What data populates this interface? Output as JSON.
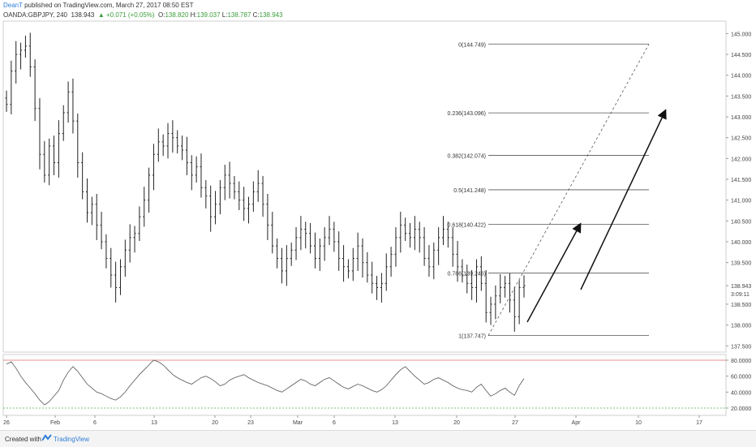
{
  "header": {
    "author": "DeanT",
    "published": " published on TradingView.com, March 27, 2017 08:50 EST",
    "symbol": "OANDA:GBPJPY, 240",
    "last": "138.943",
    "change": "▲ +0.071 (+0.05%)",
    "o_label": "O:",
    "o_value": "138.820",
    "h_label": "H:",
    "h_value": "139.037",
    "l_label": "L:",
    "l_value": "138.787",
    "c_label": "C:",
    "c_value": "138.943"
  },
  "footer": {
    "created_with": "Created with",
    "brand": "TradingView"
  },
  "colors": {
    "candle": "#222222",
    "rsi_line": "#555555",
    "rsi_upper": "#e06666",
    "rsi_lower": "#4caf50",
    "axis_text": "#444444"
  },
  "chart_data": {
    "type": "line",
    "title": "",
    "price_axis": {
      "ticks": [
        "145.000",
        "144.500",
        "144.000",
        "143.500",
        "143.000",
        "142.500",
        "142.000",
        "141.500",
        "141.000",
        "140.500",
        "140.000",
        "139.500",
        "138.943",
        "138.500",
        "138.000",
        "137.500"
      ],
      "tick_values": [
        145.0,
        144.5,
        144.0,
        143.5,
        143.0,
        142.5,
        142.0,
        141.5,
        141.0,
        140.5,
        140.0,
        139.5,
        138.943,
        138.5,
        138.0,
        137.5
      ],
      "countdown": "3:09:11",
      "range": [
        137.35,
        145.3
      ]
    },
    "time_axis": {
      "labels": [
        "26",
        "Feb",
        "6",
        "13",
        "20",
        "23",
        "Mar",
        "6",
        "13",
        "20",
        "27",
        "Apr",
        "10",
        "17"
      ]
    },
    "price_series": {
      "name": "",
      "values": [
        143.3,
        144.1,
        144.5,
        144.6,
        144.7,
        144.2,
        143.2,
        142.1,
        141.6,
        142.3,
        141.9,
        142.6,
        143.1,
        143.6,
        142.9,
        141.9,
        141.2,
        140.7,
        140.9,
        140.4,
        140.0,
        139.6,
        139.2,
        138.9,
        139.4,
        139.8,
        140.1,
        140.2,
        140.6,
        141.0,
        141.6,
        142.1,
        142.4,
        142.3,
        142.6,
        142.5,
        142.3,
        142.2,
        141.9,
        141.6,
        141.8,
        141.3,
        141.1,
        140.6,
        140.9,
        141.3,
        141.6,
        141.4,
        141.2,
        141.0,
        140.8,
        140.9,
        141.2,
        141.4,
        140.9,
        140.4,
        139.9,
        139.6,
        139.3,
        139.6,
        139.8,
        140.1,
        140.3,
        140.2,
        139.9,
        139.6,
        139.9,
        140.1,
        140.3,
        140.0,
        139.6,
        139.4,
        139.3,
        139.6,
        139.9,
        139.5,
        139.2,
        139.0,
        138.9,
        139.0,
        139.4,
        139.7,
        140.1,
        140.4,
        140.2,
        140.1,
        140.3,
        140.1,
        139.6,
        139.4,
        139.8,
        140.1,
        140.3,
        140.1,
        139.7,
        139.4,
        139.2,
        139.0,
        138.9,
        139.4,
        139.0,
        138.3,
        138.5,
        138.7,
        138.9,
        139.0,
        138.6,
        138.2,
        138.9,
        138.943
      ]
    },
    "fibonacci": {
      "levels": [
        {
          "label": "0(144.749)",
          "value": 144.749
        },
        {
          "label": "0.236(143.096)",
          "value": 143.096
        },
        {
          "label": "0.382(142.074)",
          "value": 142.074
        },
        {
          "label": "0.5(141.248)",
          "value": 141.248
        },
        {
          "label": "0.618(140.422)",
          "value": 140.422
        },
        {
          "label": "0.786(139.246)",
          "value": 139.246
        },
        {
          "label": "1(137.747)",
          "value": 137.747
        }
      ]
    },
    "rsi": {
      "ticks": [
        "80.0000",
        "60.0000",
        "40.0000",
        "20.0000"
      ],
      "tick_values": [
        80,
        60,
        40,
        20
      ],
      "upper": 80,
      "lower": 20,
      "values": [
        75,
        78,
        70,
        60,
        52,
        45,
        38,
        30,
        24,
        28,
        35,
        42,
        55,
        65,
        72,
        66,
        58,
        50,
        45,
        40,
        38,
        35,
        32,
        30,
        34,
        40,
        48,
        55,
        62,
        68,
        74,
        80,
        78,
        74,
        68,
        62,
        58,
        55,
        52,
        50,
        54,
        58,
        60,
        57,
        53,
        48,
        50,
        55,
        58,
        60,
        62,
        58,
        55,
        52,
        50,
        48,
        45,
        42,
        40,
        44,
        48,
        52,
        56,
        54,
        50,
        48,
        52,
        56,
        58,
        54,
        50,
        46,
        44,
        47,
        50,
        48,
        45,
        42,
        40,
        43,
        48,
        55,
        62,
        68,
        72,
        66,
        60,
        55,
        50,
        52,
        56,
        58,
        55,
        52,
        48,
        45,
        43,
        42,
        40,
        46,
        50,
        42,
        35,
        38,
        42,
        45,
        40,
        36,
        48,
        57
      ]
    }
  }
}
